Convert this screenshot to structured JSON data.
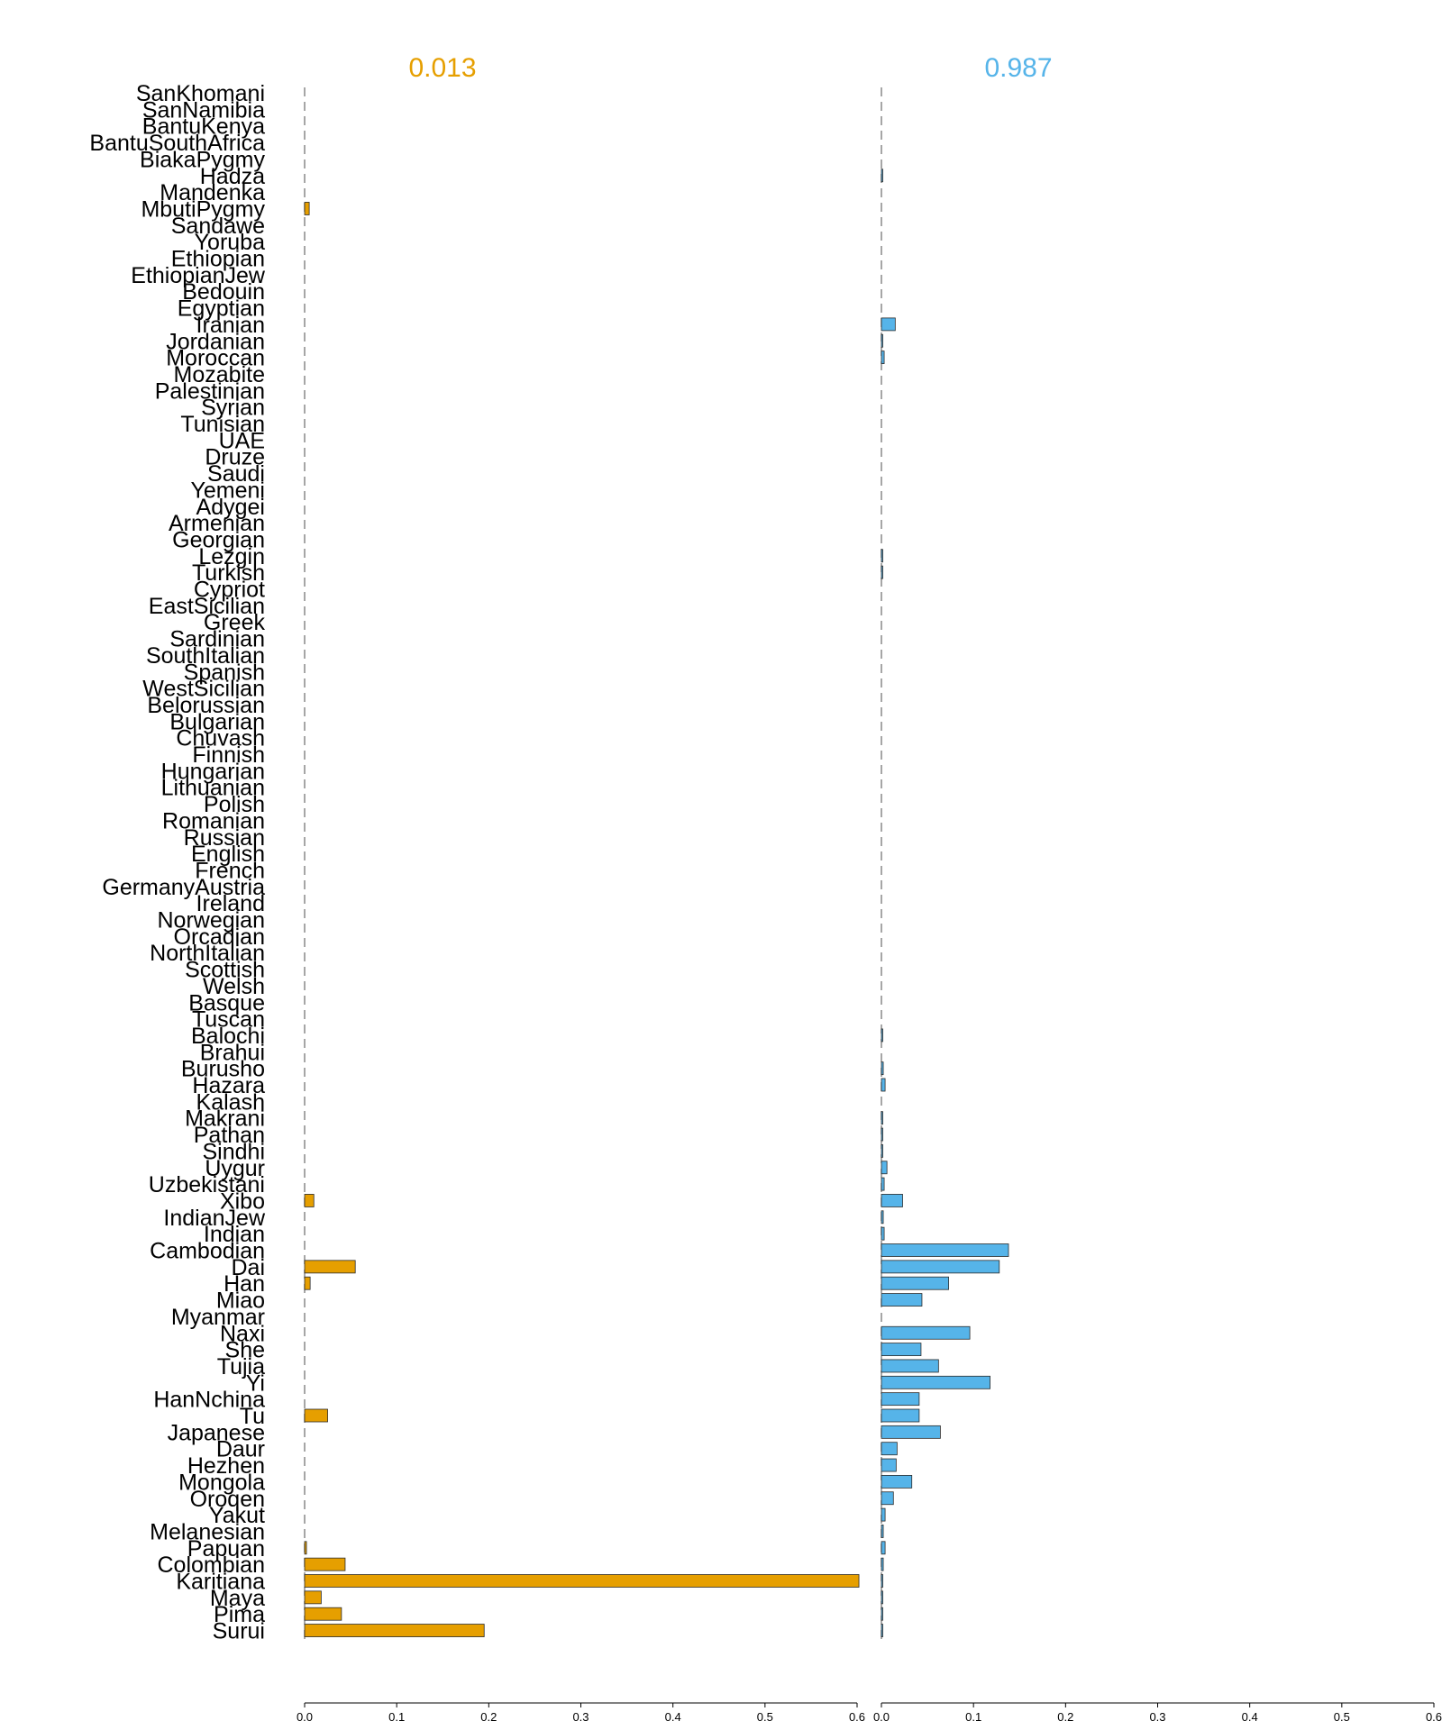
{
  "chart_data": {
    "type": "bar",
    "orientation": "horizontal",
    "grid": false,
    "categories": [
      "SanKhomani",
      "SanNamibia",
      "BantuKenya",
      "BantuSouthAfrica",
      "BiakaPygmy",
      "Hadza",
      "Mandenka",
      "MbutiPygmy",
      "Sandawe",
      "Yoruba",
      "Ethiopian",
      "EthiopianJew",
      "Bedouin",
      "Egyptian",
      "Iranian",
      "Jordanian",
      "Moroccan",
      "Mozabite",
      "Palestinian",
      "Syrian",
      "Tunisian",
      "UAE",
      "Druze",
      "Saudi",
      "Yemeni",
      "Adygei",
      "Armenian",
      "Georgian",
      "Lezgin",
      "Turkish",
      "Cypriot",
      "EastSicilian",
      "Greek",
      "Sardinian",
      "SouthItalian",
      "Spanish",
      "WestSicilian",
      "Belorussian",
      "Bulgarian",
      "Chuvash",
      "Finnish",
      "Hungarian",
      "Lithuanian",
      "Polish",
      "Romanian",
      "Russian",
      "English",
      "French",
      "GermanyAustria",
      "Ireland",
      "Norwegian",
      "Orcadian",
      "NorthItalian",
      "Scottish",
      "Welsh",
      "Basque",
      "Tuscan",
      "Balochi",
      "Brahui",
      "Burusho",
      "Hazara",
      "Kalash",
      "Makrani",
      "Pathan",
      "Sindhi",
      "Uygur",
      "Uzbekistani",
      "Xibo",
      "IndianJew",
      "Indian",
      "Cambodian",
      "Dai",
      "Han",
      "Miao",
      "Myanmar",
      "Naxi",
      "She",
      "Tujia",
      "Yi",
      "HanNchina",
      "Tu",
      "Japanese",
      "Daur",
      "Hezhen",
      "Mongola",
      "Oroqen",
      "Yakut",
      "Melanesian",
      "Papuan",
      "Colombian",
      "Karitiana",
      "Maya",
      "Pima",
      "Surui"
    ],
    "xlim": [
      0,
      0.6
    ],
    "xticks": [
      "0.0",
      "0.1",
      "0.2",
      "0.3",
      "0.4",
      "0.5",
      "0.6"
    ],
    "series": [
      {
        "name": "0.013",
        "color": "#E69F00",
        "values": [
          0,
          0,
          0,
          0,
          0,
          0,
          0,
          0.005,
          0,
          0,
          0,
          0,
          0,
          0,
          0,
          0,
          0,
          0,
          0,
          0,
          0,
          0,
          0,
          0,
          0,
          0,
          0,
          0,
          0,
          0,
          0,
          0,
          0,
          0,
          0,
          0,
          0,
          0,
          0,
          0,
          0,
          0,
          0,
          0,
          0,
          0,
          0,
          0,
          0,
          0,
          0,
          0,
          0,
          0,
          0,
          0,
          0,
          0,
          0,
          0,
          0,
          0,
          0,
          0,
          0,
          0,
          0,
          0.01,
          0,
          0,
          0,
          0.055,
          0.006,
          0,
          0,
          0,
          0,
          0,
          0,
          0,
          0.025,
          0,
          0,
          0,
          0,
          0,
          0,
          0,
          0.002,
          0.044,
          0.602,
          0.018,
          0.04,
          0.195
        ]
      },
      {
        "name": "0.987",
        "color": "#56B4E9",
        "values": [
          0,
          0,
          0,
          0,
          0,
          0.001,
          0,
          0,
          0,
          0,
          0,
          0,
          0,
          0,
          0.015,
          0.001,
          0.003,
          0,
          0,
          0,
          0,
          0,
          0,
          0,
          0,
          0,
          0,
          0,
          0.001,
          0.001,
          0,
          0,
          0,
          0,
          0,
          0,
          0,
          0,
          0,
          0,
          0,
          0,
          0,
          0,
          0,
          0,
          0,
          0,
          0,
          0,
          0,
          0,
          0,
          0,
          0,
          0,
          0,
          0.001,
          0,
          0.002,
          0.004,
          0,
          0.001,
          0.001,
          0.001,
          0.006,
          0.003,
          0.023,
          0.002,
          0.003,
          0.138,
          0.128,
          0.073,
          0.044,
          0,
          0.096,
          0.043,
          0.062,
          0.118,
          0.041,
          0.041,
          0.064,
          0.017,
          0.016,
          0.033,
          0.013,
          0.004,
          0.002,
          0.004,
          0.002,
          0.001,
          0.001,
          0.001,
          0.001
        ]
      }
    ]
  }
}
